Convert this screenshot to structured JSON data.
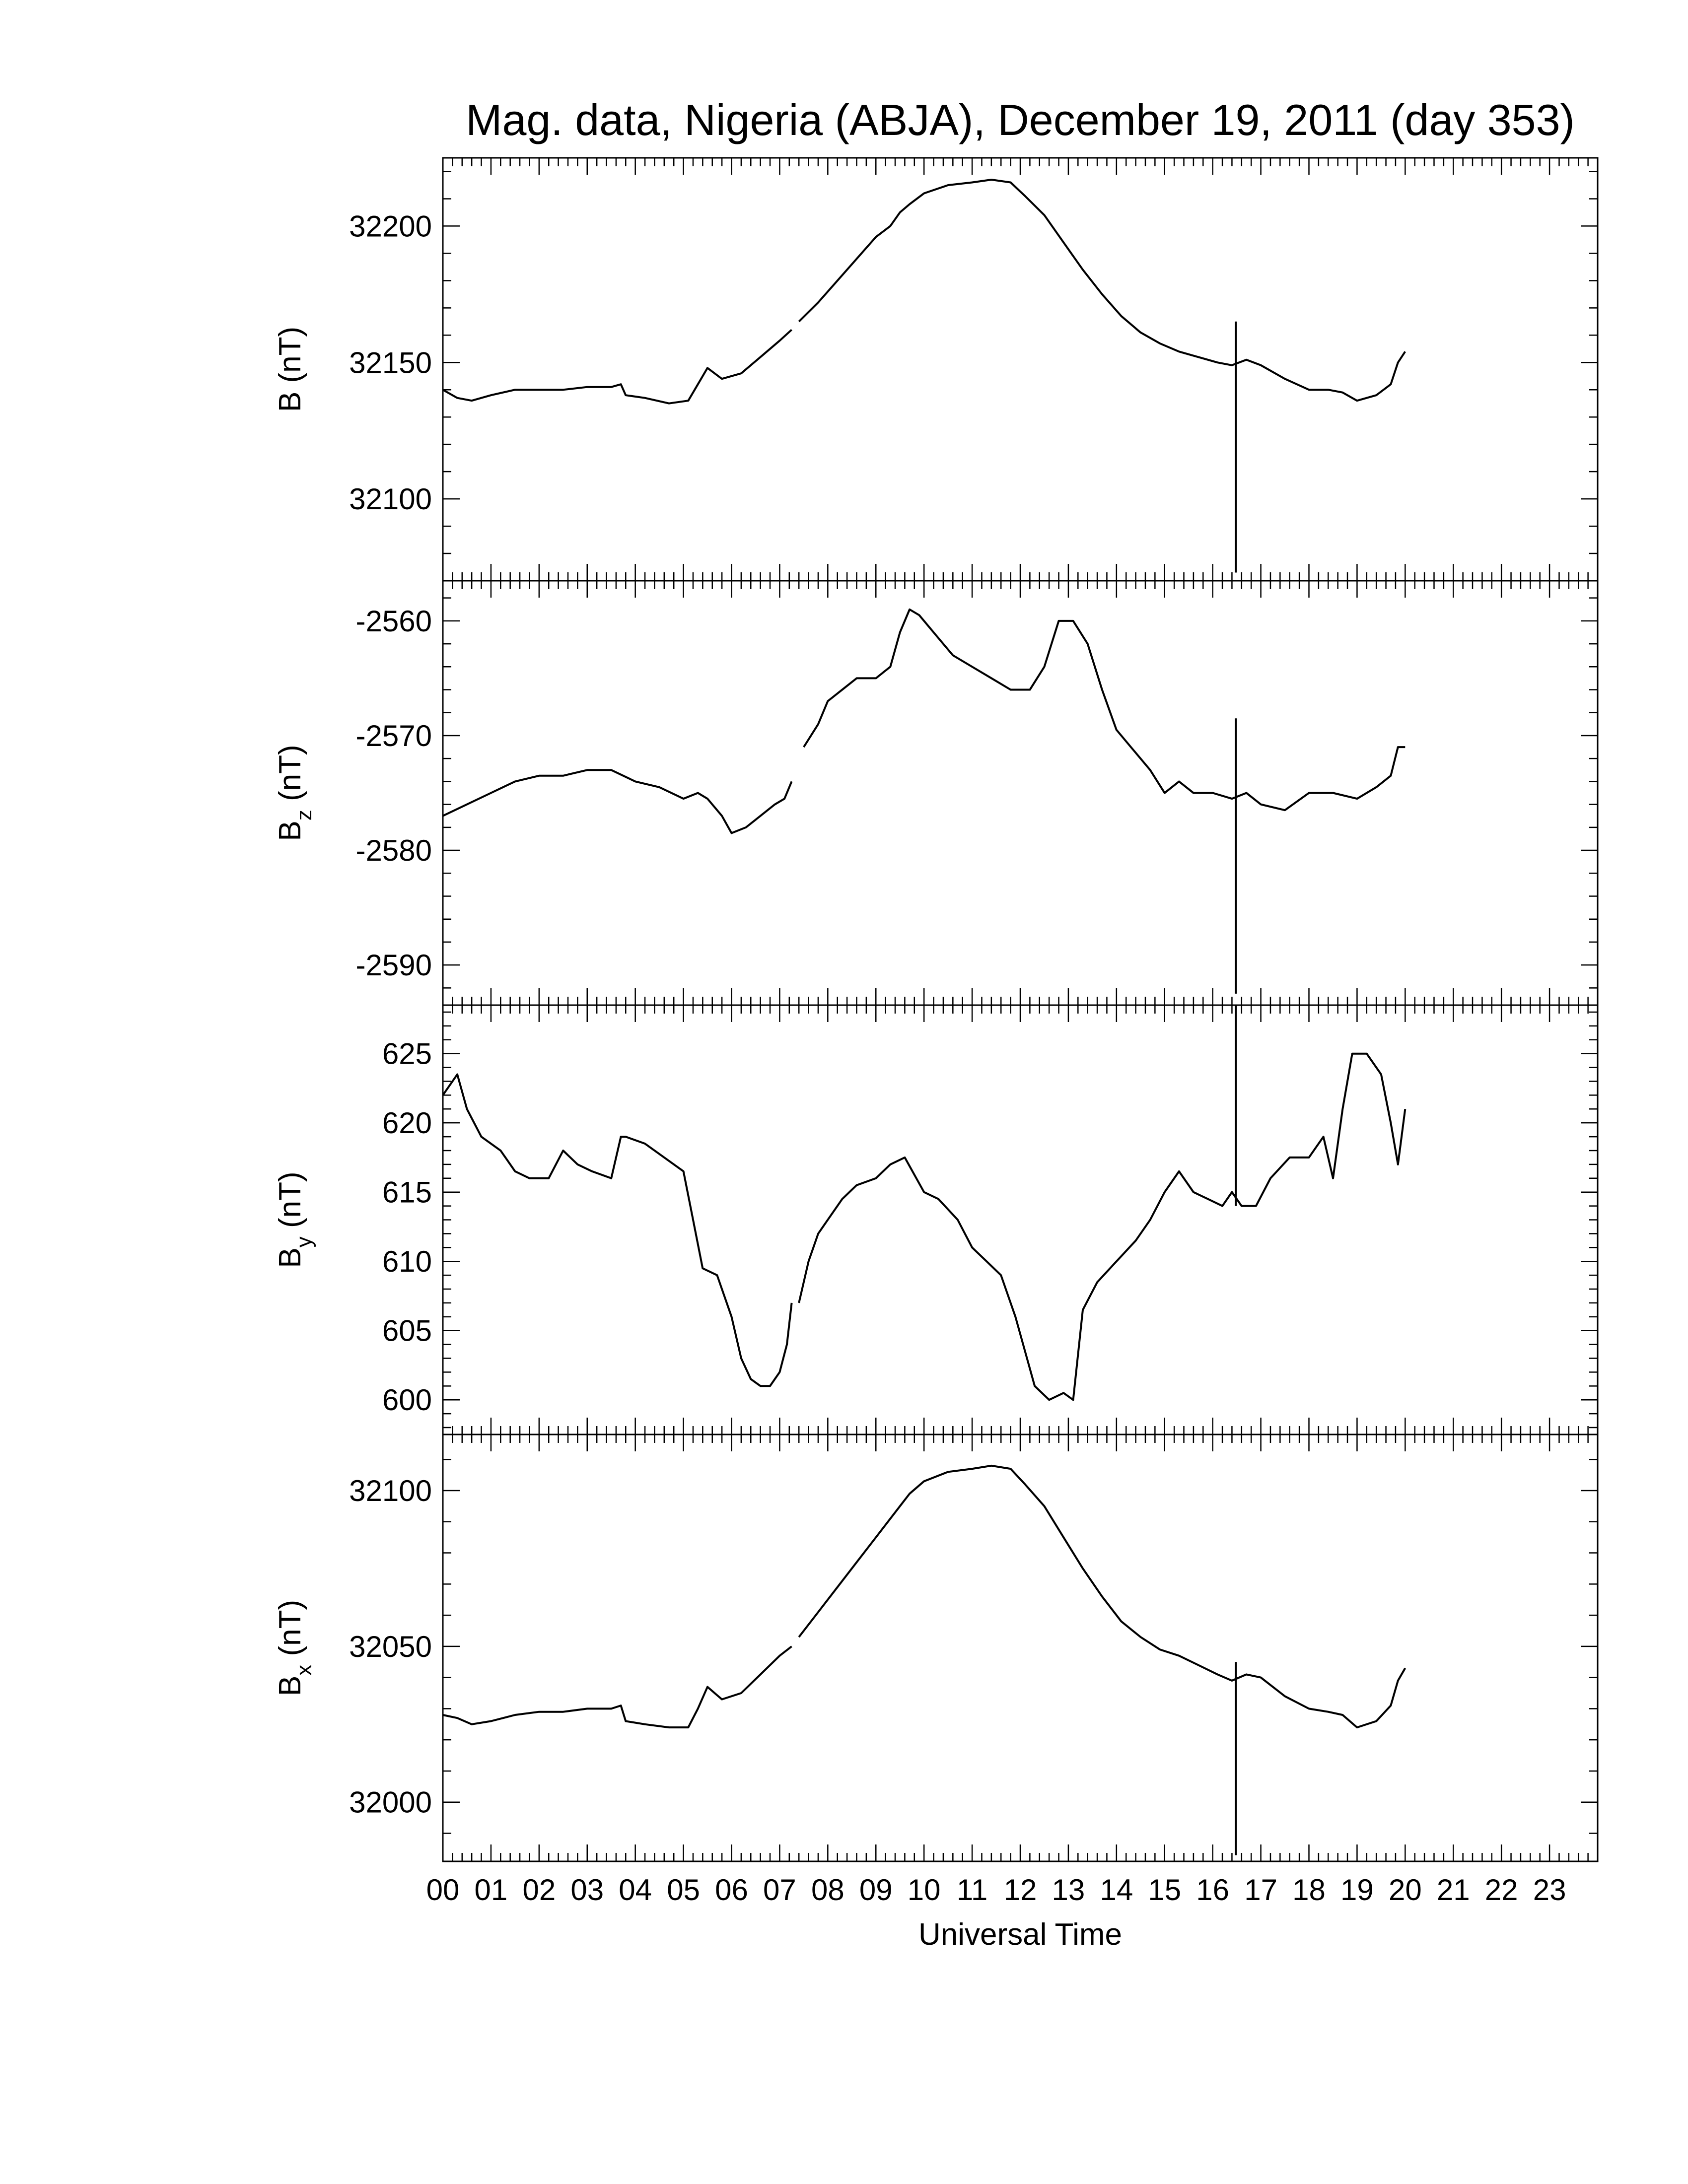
{
  "title": "Mag. data, Nigeria (ABJA), December 19, 2011 (day 353)",
  "chart_data": {
    "type": "line",
    "x_unit": "hours UT",
    "xlim": [
      0,
      24
    ],
    "xlabel": "Universal Time",
    "xticks": [
      {
        "value": 0,
        "label": "00"
      },
      {
        "value": 1,
        "label": "01"
      },
      {
        "value": 2,
        "label": "02"
      },
      {
        "value": 3,
        "label": "03"
      },
      {
        "value": 4,
        "label": "04"
      },
      {
        "value": 5,
        "label": "05"
      },
      {
        "value": 6,
        "label": "06"
      },
      {
        "value": 7,
        "label": "07"
      },
      {
        "value": 8,
        "label": "08"
      },
      {
        "value": 9,
        "label": "09"
      },
      {
        "value": 10,
        "label": "10"
      },
      {
        "value": 11,
        "label": "11"
      },
      {
        "value": 12,
        "label": "12"
      },
      {
        "value": 13,
        "label": "13"
      },
      {
        "value": 14,
        "label": "14"
      },
      {
        "value": 15,
        "label": "15"
      },
      {
        "value": 16,
        "label": "16"
      },
      {
        "value": 17,
        "label": "17"
      },
      {
        "value": 18,
        "label": "18"
      },
      {
        "value": 19,
        "label": "19"
      },
      {
        "value": 20,
        "label": "20"
      },
      {
        "value": 21,
        "label": "21"
      },
      {
        "value": 22,
        "label": "22"
      },
      {
        "value": 23,
        "label": "23"
      }
    ],
    "grid": false,
    "panels": [
      {
        "id": "B",
        "ylabel_main": "B",
        "ylabel_sub": "",
        "ylabel_unit": " (nT)",
        "ylim": [
          32070,
          32225
        ],
        "yticks": [
          32100,
          32150,
          32200
        ],
        "yticklabels": [
          "32100",
          "32150",
          "32200"
        ],
        "spike": {
          "x": 16.48,
          "ymin": 32073,
          "ymax": 32165
        },
        "series": [
          {
            "name": "",
            "x": [
              0,
              0.3,
              0.6,
              1.0,
              1.5,
              2.0,
              2.5,
              3.0,
              3.5,
              3.7,
              3.8,
              4.2,
              4.7,
              5.1,
              5.3,
              5.5,
              5.8,
              6.2,
              6.6,
              7.0,
              7.25
            ],
            "y": [
              32140,
              32137,
              32136,
              32138,
              32140,
              32140,
              32140,
              32141,
              32141,
              32142,
              32138,
              32137,
              32135,
              32136,
              32142,
              32148,
              32144,
              32146,
              32152,
              32158,
              32162
            ]
          },
          {
            "name": "",
            "x": [
              7.4,
              7.8,
              8.2,
              8.6,
              9.0,
              9.3,
              9.5,
              9.7,
              10.0,
              10.5,
              11.0,
              11.4,
              11.8,
              12.1,
              12.5,
              12.9,
              13.3,
              13.7,
              14.1,
              14.5,
              14.9,
              15.3,
              15.7,
              16.1,
              16.4,
              16.7,
              17.0,
              17.5,
              18.0,
              18.4,
              18.7,
              19.0,
              19.4,
              19.7,
              19.85,
              20.0
            ],
            "y": [
              32165,
              32172,
              32180,
              32188,
              32196,
              32200,
              32205,
              32208,
              32212,
              32215,
              32216,
              32217,
              32216,
              32211,
              32204,
              32194,
              32184,
              32175,
              32167,
              32161,
              32157,
              32154,
              32152,
              32150,
              32149,
              32151,
              32149,
              32144,
              32140,
              32140,
              32139,
              32136,
              32138,
              32142,
              32150,
              32154
            ]
          }
        ]
      },
      {
        "id": "Bz",
        "ylabel_main": "B",
        "ylabel_sub": "z",
        "ylabel_unit": " (nT)",
        "ylim": [
          -2593.5,
          -2556.5
        ],
        "yticks": [
          -2590,
          -2580,
          -2570,
          -2560
        ],
        "yticklabels": [
          "-2590",
          "-2580",
          "-2570",
          "-2560"
        ],
        "spike": {
          "x": 16.48,
          "ymin": -2592.5,
          "ymax": -2568.5
        },
        "series": [
          {
            "name": "",
            "x": [
              0,
              0.5,
              1.0,
              1.5,
              2.0,
              2.5,
              3.0,
              3.5,
              4.0,
              4.5,
              5.0,
              5.3,
              5.5,
              5.8,
              6.0,
              6.3,
              6.6,
              6.9,
              7.1,
              7.25
            ],
            "y": [
              -2577,
              -2576,
              -2575,
              -2574,
              -2573.5,
              -2573.5,
              -2573,
              -2573,
              -2574,
              -2574.5,
              -2575.5,
              -2575,
              -2575.5,
              -2577,
              -2578.5,
              -2578,
              -2577,
              -2576,
              -2575.5,
              -2574
            ]
          },
          {
            "name": "",
            "x": [
              7.5,
              7.8,
              8.0,
              8.3,
              8.6,
              9.0,
              9.3,
              9.5,
              9.7,
              9.9,
              10.2,
              10.6,
              11.0,
              11.4,
              11.8,
              12.2,
              12.5,
              12.8,
              13.1,
              13.4,
              13.7,
              14.0,
              14.3,
              14.7,
              15.0,
              15.3,
              15.6,
              16.0,
              16.4,
              16.7,
              17.0,
              17.5,
              18.0,
              18.5,
              19.0,
              19.4,
              19.7,
              19.85,
              20.0
            ],
            "y": [
              -2571,
              -2569,
              -2567,
              -2566,
              -2565,
              -2565,
              -2564,
              -2561,
              -2559,
              -2559.5,
              -2561,
              -2563,
              -2564,
              -2565,
              -2566,
              -2566,
              -2564,
              -2560,
              -2560,
              -2562,
              -2566,
              -2569.5,
              -2571,
              -2573,
              -2575,
              -2574,
              -2575,
              -2575,
              -2575.5,
              -2575,
              -2576,
              -2576.5,
              -2575,
              -2575,
              -2575.5,
              -2574.5,
              -2573.5,
              -2571,
              -2571
            ]
          }
        ]
      },
      {
        "id": "By",
        "ylabel_main": "B",
        "ylabel_sub": "y",
        "ylabel_unit": " (nT)",
        "ylim": [
          597.5,
          628.5
        ],
        "yticks": [
          600,
          605,
          610,
          615,
          620,
          625
        ],
        "yticklabels": [
          "600",
          "605",
          "610",
          "615",
          "620",
          "625"
        ],
        "spike": {
          "x": 16.48,
          "ymin": 614,
          "ymax": 628.5
        },
        "series": [
          {
            "name": "",
            "x": [
              0,
              0.3,
              0.5,
              0.8,
              1.2,
              1.5,
              1.8,
              2.2,
              2.5,
              2.8,
              3.1,
              3.5,
              3.7,
              3.8,
              4.2,
              4.6,
              5.0,
              5.2,
              5.4,
              5.7,
              6.0,
              6.2,
              6.4,
              6.6,
              6.8,
              7.0,
              7.15,
              7.25
            ],
            "y": [
              622,
              623.5,
              621,
              619,
              618,
              616.5,
              616,
              616,
              618,
              617,
              616.5,
              616,
              619,
              619,
              618.5,
              617.5,
              616.5,
              613,
              609.5,
              609,
              606,
              603,
              601.5,
              601,
              601,
              602,
              604,
              607
            ]
          },
          {
            "name": "",
            "x": [
              7.4,
              7.6,
              7.8,
              8.0,
              8.3,
              8.6,
              9.0,
              9.3,
              9.6,
              10.0,
              10.3,
              10.7,
              11.0,
              11.3,
              11.6,
              11.9,
              12.1,
              12.3,
              12.6,
              12.9,
              13.1,
              13.3,
              13.6,
              14.0,
              14.4,
              14.7,
              15.0,
              15.3,
              15.6,
              15.9,
              16.2,
              16.4,
              16.6,
              16.9,
              17.2,
              17.6,
              18.0,
              18.3,
              18.5,
              18.7,
              18.9,
              19.2,
              19.5,
              19.7,
              19.85,
              20.0
            ],
            "y": [
              607,
              610,
              612,
              613,
              614.5,
              615.5,
              616,
              617,
              617.5,
              615,
              614.5,
              613,
              611,
              610,
              609,
              606,
              603.5,
              601,
              600,
              600.5,
              600,
              606.5,
              608.5,
              610,
              611.5,
              613,
              615,
              616.5,
              615,
              614.5,
              614,
              615,
              614,
              614,
              616,
              617.5,
              617.5,
              619,
              616,
              621,
              625,
              625,
              623.5,
              620,
              617,
              621
            ]
          }
        ]
      },
      {
        "id": "Bx",
        "ylabel_main": "B",
        "ylabel_sub": "x",
        "ylabel_unit": " (nT)",
        "ylim": [
          31981,
          32118
        ],
        "yticks": [
          32000,
          32050,
          32100
        ],
        "yticklabels": [
          "32000",
          "32050",
          "32100"
        ],
        "spike": {
          "x": 16.48,
          "ymin": 31983,
          "ymax": 32045
        },
        "series": [
          {
            "name": "",
            "x": [
              0,
              0.3,
              0.6,
              1.0,
              1.5,
              2.0,
              2.5,
              3.0,
              3.5,
              3.7,
              3.8,
              4.2,
              4.7,
              5.1,
              5.3,
              5.5,
              5.8,
              6.2,
              6.6,
              7.0,
              7.25
            ],
            "y": [
              32028,
              32027,
              32025,
              32026,
              32028,
              32029,
              32029,
              32030,
              32030,
              32031,
              32026,
              32025,
              32024,
              32024,
              32030,
              32037,
              32033,
              32035,
              32041,
              32047,
              32050
            ]
          },
          {
            "name": "",
            "x": [
              7.4,
              7.8,
              8.2,
              8.6,
              9.0,
              9.3,
              9.5,
              9.7,
              10.0,
              10.5,
              11.0,
              11.4,
              11.8,
              12.1,
              12.5,
              12.9,
              13.3,
              13.7,
              14.1,
              14.5,
              14.9,
              15.3,
              15.7,
              16.1,
              16.4,
              16.7,
              17.0,
              17.5,
              18.0,
              18.4,
              18.7,
              19.0,
              19.4,
              19.7,
              19.85,
              20.0
            ],
            "y": [
              32053,
              32061,
              32069,
              32077,
              32085,
              32091,
              32095,
              32099,
              32103,
              32106,
              32107,
              32108,
              32107,
              32102,
              32095,
              32085,
              32075,
              32066,
              32058,
              32053,
              32049,
              32047,
              32044,
              32041,
              32039,
              32041,
              32040,
              32034,
              32030,
              32029,
              32028,
              32024,
              32026,
              32031,
              32039,
              32043
            ]
          }
        ]
      }
    ]
  }
}
